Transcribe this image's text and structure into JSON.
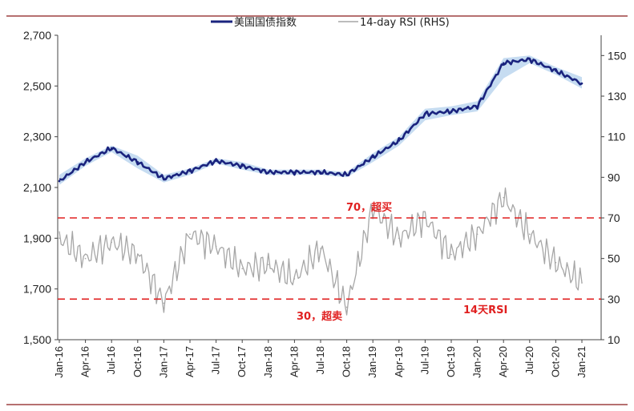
{
  "chart_data": {
    "type": "line",
    "categories": [
      "Jan-16",
      "Apr-16",
      "Jul-16",
      "Oct-16",
      "Jan-17",
      "Apr-17",
      "Jul-17",
      "Oct-17",
      "Jan-18",
      "Apr-18",
      "Jul-18",
      "Oct-18",
      "Jan-19",
      "Apr-19",
      "Jul-19",
      "Oct-19",
      "Jan-20",
      "Apr-20",
      "Jul-20",
      "Oct-20",
      "Jan-21"
    ],
    "y_left": {
      "min": 1500,
      "max": 2700,
      "ticks": [
        "1,500",
        "1,700",
        "1,900",
        "2,100",
        "2,300",
        "2,500",
        "2,700"
      ]
    },
    "y_right": {
      "min": 10,
      "max": 160,
      "ticks": [
        "10",
        "30",
        "50",
        "70",
        "90",
        "110",
        "130",
        "150"
      ]
    },
    "series": [
      {
        "name": "美国国债指数",
        "axis": "left",
        "color": "#1a237e",
        "values": [
          2125,
          2200,
          2255,
          2200,
          2135,
          2165,
          2205,
          2185,
          2160,
          2160,
          2160,
          2150,
          2220,
          2285,
          2390,
          2400,
          2420,
          2590,
          2605,
          2560,
          2510
        ]
      },
      {
        "name": "14-day RSI (RHS)",
        "axis": "right",
        "color": "#a6a6a6",
        "values": [
          60,
          50,
          58,
          52,
          28,
          62,
          56,
          45,
          47,
          40,
          55,
          26,
          75,
          60,
          70,
          52,
          62,
          80,
          62,
          48,
          38
        ]
      }
    ],
    "band": {
      "color": "#b8d3ee",
      "upper": [
        2150,
        2215,
        2265,
        2225,
        2150,
        2175,
        2215,
        2200,
        2170,
        2170,
        2170,
        2160,
        2235,
        2300,
        2410,
        2420,
        2440,
        2610,
        2620,
        2575,
        2535
      ],
      "lower": [
        2110,
        2185,
        2240,
        2175,
        2120,
        2150,
        2195,
        2170,
        2150,
        2150,
        2150,
        2140,
        2200,
        2265,
        2365,
        2385,
        2400,
        2530,
        2590,
        2545,
        2490
      ]
    },
    "reference_lines": [
      {
        "value": 70,
        "axis": "right",
        "label": "70，超买"
      },
      {
        "value": 30,
        "axis": "right",
        "label": "30，超卖"
      }
    ],
    "annotation": "14天RSI",
    "legend_position": "top"
  }
}
